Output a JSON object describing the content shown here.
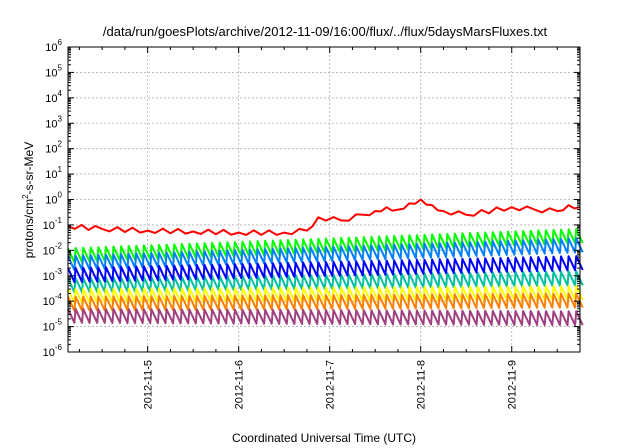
{
  "chart_data": {
    "type": "line",
    "title": "/data/run/goesPlots/archive/2012-11-09/16:00/flux/../flux/5daysMarsFluxes.txt",
    "xlabel": "Coordinated Universal Time (UTC)",
    "ylabel": {
      "pre": "protons/cm",
      "sup": "2",
      "post": "-s-sr-MeV"
    },
    "x_ticks": [
      "2012-11-5",
      "2012-11-6",
      "2012-11-7",
      "2012-11-8",
      "2012-11-9"
    ],
    "xlim": [
      "2012-11-04T03:00",
      "2012-11-09T18:00"
    ],
    "y_scale": "log",
    "y_ticks": [
      {
        "base": "10",
        "exp": "6",
        "v": 6
      },
      {
        "base": "10",
        "exp": "5",
        "v": 5
      },
      {
        "base": "10",
        "exp": "4",
        "v": 4
      },
      {
        "base": "10",
        "exp": "3",
        "v": 3
      },
      {
        "base": "10",
        "exp": "2",
        "v": 2
      },
      {
        "base": "10",
        "exp": "1",
        "v": 1
      },
      {
        "base": "10",
        "exp": "0",
        "v": 0
      },
      {
        "base": "10",
        "exp": "-1",
        "v": -1
      },
      {
        "base": "10",
        "exp": "-2",
        "v": -2
      },
      {
        "base": "10",
        "exp": "-3",
        "v": -3
      },
      {
        "base": "10",
        "exp": "-4",
        "v": -4
      },
      {
        "base": "10",
        "exp": "-5",
        "v": -5
      },
      {
        "base": "10",
        "exp": "-6",
        "v": -6
      }
    ],
    "ylim": [
      1e-06,
      1000000.0
    ],
    "grid": true,
    "series": [
      {
        "color": "#ff0000",
        "x": [
          "2012-11-04T03:00",
          "2012-11-04T12:00",
          "2012-11-05T00:00",
          "2012-11-05T12:00",
          "2012-11-06T00:00",
          "2012-11-06T12:00",
          "2012-11-06T18:00",
          "2012-11-06T21:00",
          "2012-11-07T03:00",
          "2012-11-07T09:00",
          "2012-11-07T12:00",
          "2012-11-07T15:00",
          "2012-11-07T18:00",
          "2012-11-07T21:00",
          "2012-11-08T00:00",
          "2012-11-08T03:00",
          "2012-11-08T06:00",
          "2012-11-08T12:00",
          "2012-11-09T00:00",
          "2012-11-09T06:00",
          "2012-11-09T12:00",
          "2012-11-09T15:00",
          "2012-11-09T18:00"
        ],
        "y": [
          0.09,
          0.07,
          0.06,
          0.055,
          0.05,
          0.05,
          0.06,
          0.2,
          0.15,
          0.25,
          0.35,
          0.5,
          0.4,
          0.7,
          1.0,
          0.6,
          0.35,
          0.25,
          0.5,
          0.4,
          0.35,
          0.6,
          0.5
        ]
      },
      {
        "color": "#00ff00",
        "x": [
          "2012-11-04T03:00",
          "2012-11-09T18:00"
        ],
        "y": [
          0.012,
          0.07
        ]
      },
      {
        "color": "#0080ff",
        "x": [
          "2012-11-04T03:00",
          "2012-11-09T18:00"
        ],
        "y": [
          0.006,
          0.03
        ]
      },
      {
        "color": "#00c0a0",
        "x": [
          "2012-11-04T03:00",
          "2012-11-09T18:00"
        ],
        "y": [
          0.0008,
          0.0015
        ]
      },
      {
        "color": "#0000ff",
        "x": [
          "2012-11-04T03:00",
          "2012-11-09T18:00"
        ],
        "y": [
          0.002,
          0.006
        ]
      },
      {
        "color": "#ffff00",
        "x": [
          "2012-11-04T03:00",
          "2012-11-09T18:00"
        ],
        "y": [
          0.0003,
          0.0004
        ]
      },
      {
        "color": "#ff8000",
        "x": [
          "2012-11-04T03:00",
          "2012-11-09T18:00"
        ],
        "y": [
          0.00015,
          0.0002
        ]
      },
      {
        "color": "#a04080",
        "x": [
          "2012-11-04T03:00",
          "2012-11-09T18:00"
        ],
        "y": [
          5e-05,
          4e-05
        ]
      }
    ]
  }
}
